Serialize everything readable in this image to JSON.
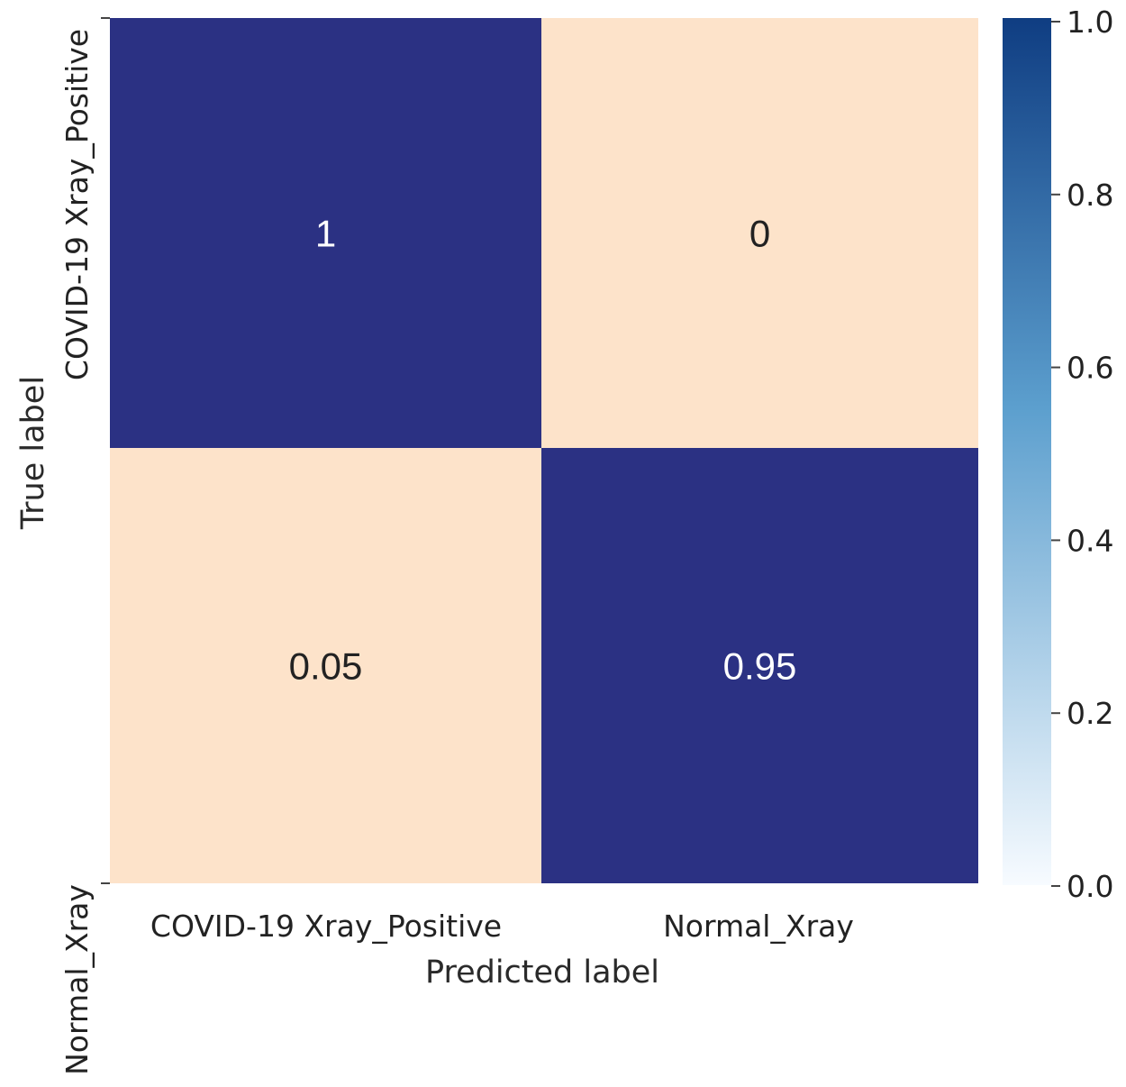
{
  "chart_data": {
    "type": "heatmap",
    "title": "",
    "xlabel": "Predicted label",
    "ylabel": "True label",
    "x_categories": [
      "COVID-19 Xray_Positive",
      "Normal_Xray"
    ],
    "y_categories": [
      "COVID-19 Xray_Positive",
      "Normal_Xray"
    ],
    "values": [
      [
        1,
        0
      ],
      [
        0.05,
        0.95
      ]
    ],
    "cell_labels": [
      [
        "1",
        "0"
      ],
      [
        "0.05",
        "0.95"
      ]
    ],
    "colorbar": {
      "range": [
        0,
        1
      ],
      "ticks": [
        0.0,
        0.2,
        0.4,
        0.6,
        0.8,
        1.0
      ],
      "tick_labels": [
        "0.0",
        "0.2",
        "0.4",
        "0.6",
        "0.8",
        "1.0"
      ]
    }
  },
  "colors": {
    "high": "#2b3183",
    "low": "#fde3ca",
    "text_on_high": "#ffffff",
    "text_on_low": "#222222",
    "colorbar_top": "#0f3d82",
    "colorbar_mid": "#5c9fce",
    "colorbar_bottom": "#f7fbff"
  }
}
